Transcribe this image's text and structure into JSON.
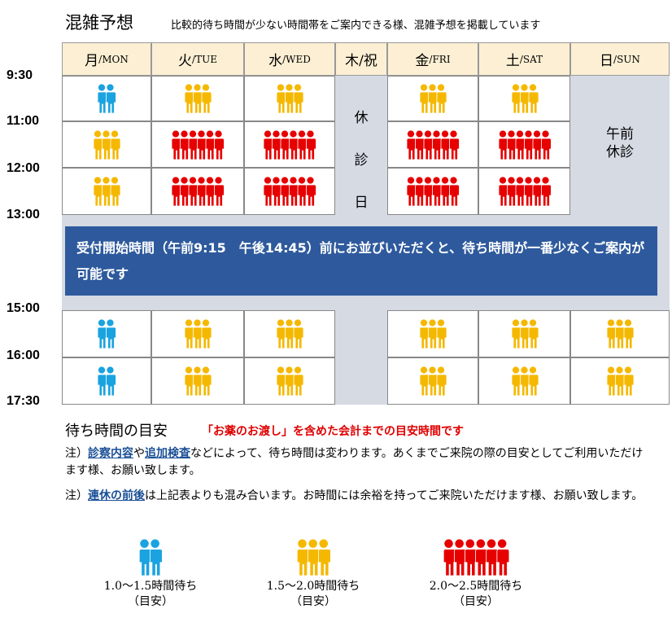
{
  "header": {
    "title": "混雑予想",
    "subtitle": "比較的待ち時間が少ない時間帯をご案内できる様、混雑予想を掲載しています"
  },
  "days": [
    {
      "jp": "月",
      "en": "/MON"
    },
    {
      "jp": "火",
      "en": "/TUE"
    },
    {
      "jp": "水",
      "en": "/WED"
    },
    {
      "jp": "木/祝",
      "en": ""
    },
    {
      "jp": "金",
      "en": "/FRI"
    },
    {
      "jp": "土",
      "en": "/SAT"
    },
    {
      "jp": "日",
      "en": "/SUN"
    }
  ],
  "times": [
    "9:30",
    "11:00",
    "12:00",
    "13:00",
    "15:00",
    "16:00",
    "17:30"
  ],
  "closed_thursday": [
    "休",
    "診",
    "日"
  ],
  "sunday_closed": [
    "午前",
    "休診"
  ],
  "banner": "受付開始時間（午前9:15　午後14:45）前にお並びいただくと、待ち時間が一番少なくご案内が可能です",
  "levels": {
    "low": {
      "count": 2,
      "color": "#1aa3e0"
    },
    "mid": {
      "count": 3,
      "color": "#f5b800"
    },
    "high": {
      "count": 6,
      "color": "#e60000"
    }
  },
  "schedule": [
    {
      "slot": "9:30-11:00",
      "cells": [
        "low",
        "mid",
        "mid",
        "closed",
        "mid",
        "mid",
        "gray"
      ]
    },
    {
      "slot": "11:00-12:00",
      "cells": [
        "mid",
        "high",
        "high",
        "closed",
        "high",
        "high",
        "gray"
      ]
    },
    {
      "slot": "12:00-13:00",
      "cells": [
        "mid",
        "high",
        "high",
        "closed",
        "high",
        "high",
        "gray"
      ]
    },
    {
      "slot": "15:00-16:00",
      "cells": [
        "low",
        "mid",
        "mid",
        "closed",
        "mid",
        "mid",
        "mid"
      ]
    },
    {
      "slot": "16:00-17:30",
      "cells": [
        "low",
        "mid",
        "mid",
        "closed",
        "mid",
        "mid",
        "mid"
      ]
    }
  ],
  "guide": {
    "title": "待ち時間の目安",
    "red_note": "「お薬のお渡し」を含めた会計までの目安時間です",
    "note1_prefix": "注）",
    "note1_b1": "診察内容",
    "note1_mid": "や",
    "note1_b2": "追加検査",
    "note1_rest": "などによって、待ち時間は変わります。あくまでご来院の際の目安としてご利用いただけます様、お願い致します。",
    "note2_prefix": "注）",
    "note2_b": "連休の前後",
    "note2_rest": "は上記表よりも混み合います。お時間には余裕を持ってご来院いただけます様、お願い致します。"
  },
  "legend": [
    {
      "label": "1.0～1.5時間待ち",
      "sub": "（目安）"
    },
    {
      "label": "1.5～2.0時間待ち",
      "sub": "（目安）"
    },
    {
      "label": "2.0～2.5時間待ち",
      "sub": "（目安）"
    }
  ]
}
